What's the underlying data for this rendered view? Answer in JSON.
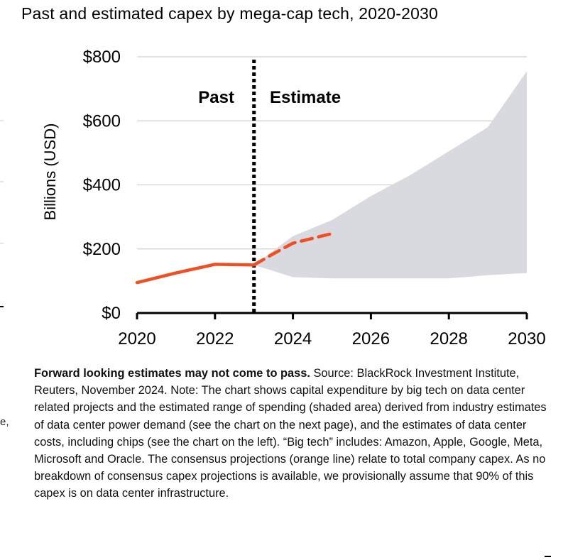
{
  "chart_data": {
    "type": "line",
    "title": "Past and estimated capex by mega-cap tech, 2020-2030",
    "ylabel": "Billions (USD)",
    "xlabel": "",
    "xlim": [
      2020,
      2030
    ],
    "ylim": [
      0,
      800
    ],
    "x_ticks": [
      2020,
      2022,
      2024,
      2026,
      2028,
      2030
    ],
    "y_ticks": [
      0,
      200,
      400,
      600,
      800
    ],
    "y_tick_labels": [
      "$0",
      "$200",
      "$400",
      "$600",
      "$800"
    ],
    "grid": true,
    "divider_year": 2023,
    "region_labels": [
      "Past",
      "Estimate"
    ],
    "accent_color": "#f04e23",
    "band_color": "#d9d9e0",
    "series": [
      {
        "kind": "past",
        "style": "solid",
        "x": [
          2020,
          2021,
          2022,
          2023
        ],
        "y": [
          95,
          125,
          152,
          150
        ]
      },
      {
        "kind": "consensus",
        "style": "dashed",
        "x": [
          2023,
          2023.5,
          2024,
          2025
        ],
        "y": [
          150,
          185,
          218,
          248
        ]
      },
      {
        "kind": "range",
        "style": "band",
        "x": [
          2023,
          2024,
          2025,
          2026,
          2027,
          2028,
          2029,
          2030
        ],
        "upper": [
          150,
          240,
          290,
          365,
          430,
          505,
          580,
          755
        ],
        "lower": [
          150,
          112,
          108,
          108,
          108,
          108,
          118,
          125
        ]
      }
    ]
  },
  "footnote": {
    "lead": "Forward looking estimates may not come to pass.",
    "text": " Source: BlackRock Investment Institute, Reuters, November 2024. Note: The chart shows capital expenditure by big tech on data center related projects and the estimated range of spending (shaded area) derived from industry estimates of data center power demand (see the chart on the next page), and the estimates of data center costs, including chips (see the chart on the left). “Big tech” includes: Amazon, Apple, Google, Meta, Microsoft and Oracle. The consensus projections (orange line) relate to total company capex. As no breakdown of consensus capex projections is available, we provisionally assume that 90% of this capex is on data center infrastructure."
  },
  "edge_fragment": "e,"
}
